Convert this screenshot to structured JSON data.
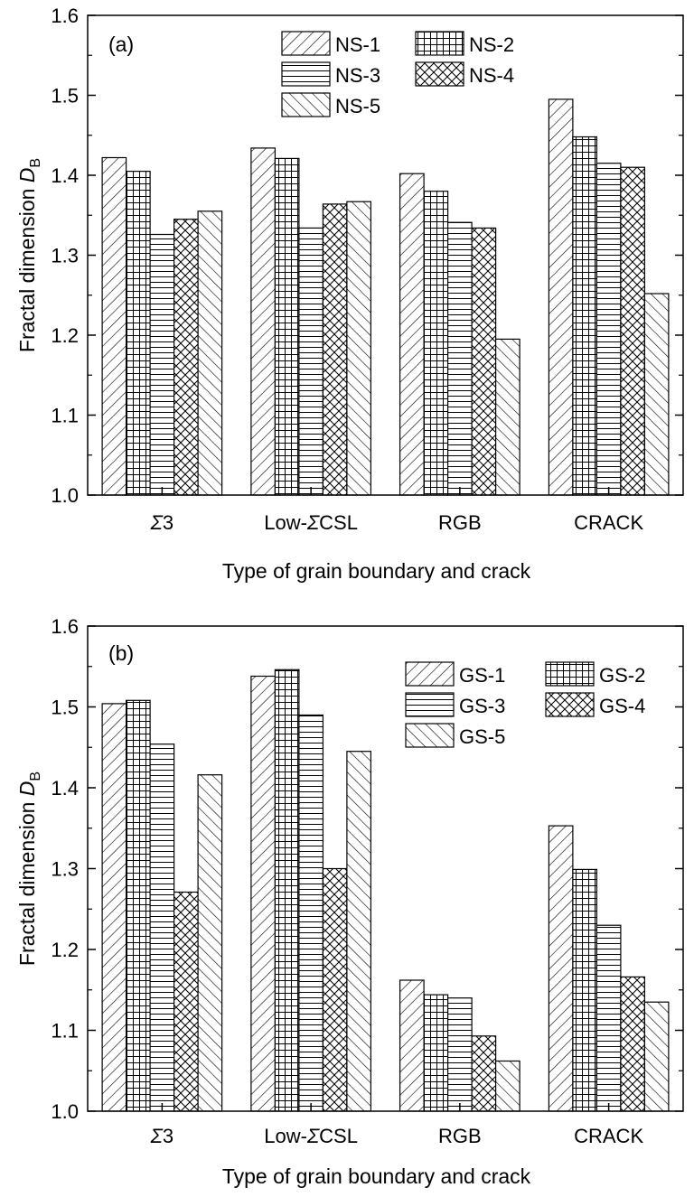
{
  "chart_data": [
    {
      "type": "bar",
      "panel_label": "(a)",
      "categories": [
        "Σ3",
        "Low-ΣCSL",
        "RGB",
        "CRACK"
      ],
      "category_labels": [
        {
          "prefix": "",
          "sigma": "Σ",
          "suffix": "3"
        },
        {
          "prefix": "Low-",
          "sigma": "Σ",
          "suffix": "CSL"
        },
        {
          "prefix": "RGB",
          "sigma": "",
          "suffix": ""
        },
        {
          "prefix": "CRACK",
          "sigma": "",
          "suffix": ""
        }
      ],
      "series": [
        {
          "name": "NS-1",
          "pattern": "diag-right",
          "values": [
            1.422,
            1.434,
            1.402,
            1.495
          ]
        },
        {
          "name": "NS-2",
          "pattern": "grid",
          "values": [
            1.405,
            1.421,
            1.38,
            1.448
          ]
        },
        {
          "name": "NS-3",
          "pattern": "horizontal",
          "values": [
            1.326,
            1.334,
            1.341,
            1.415
          ]
        },
        {
          "name": "NS-4",
          "pattern": "crosshatch",
          "values": [
            1.345,
            1.364,
            1.334,
            1.41
          ]
        },
        {
          "name": "NS-5",
          "pattern": "diag-left",
          "values": [
            1.355,
            1.367,
            1.195,
            1.252
          ]
        }
      ],
      "xlabel": "Type of grain boundary and crack",
      "ylabel_text": "Fractal dimension ",
      "ylabel_symbol": "D",
      "ylabel_subscript": "B",
      "ylim": [
        1.0,
        1.6
      ],
      "yticks": [
        "1.0",
        "1.1",
        "1.2",
        "1.3",
        "1.4",
        "1.5",
        "1.6"
      ],
      "legend_position": "top-right"
    },
    {
      "type": "bar",
      "panel_label": "(b)",
      "categories": [
        "Σ3",
        "Low-ΣCSL",
        "RGB",
        "CRACK"
      ],
      "category_labels": [
        {
          "prefix": "",
          "sigma": "Σ",
          "suffix": "3"
        },
        {
          "prefix": "Low-",
          "sigma": "Σ",
          "suffix": "CSL"
        },
        {
          "prefix": "RGB",
          "sigma": "",
          "suffix": ""
        },
        {
          "prefix": "CRACK",
          "sigma": "",
          "suffix": ""
        }
      ],
      "series": [
        {
          "name": "GS-1",
          "pattern": "diag-right",
          "values": [
            1.504,
            1.538,
            1.162,
            1.353
          ]
        },
        {
          "name": "GS-2",
          "pattern": "grid",
          "values": [
            1.508,
            1.546,
            1.144,
            1.299
          ]
        },
        {
          "name": "GS-3",
          "pattern": "horizontal",
          "values": [
            1.454,
            1.49,
            1.14,
            1.23
          ]
        },
        {
          "name": "GS-4",
          "pattern": "crosshatch",
          "values": [
            1.271,
            1.3,
            1.093,
            1.166
          ]
        },
        {
          "name": "GS-5",
          "pattern": "diag-left",
          "values": [
            1.416,
            1.445,
            1.062,
            1.135
          ]
        }
      ],
      "xlabel": "Type of grain boundary and crack",
      "ylabel_text": "Fractal dimension ",
      "ylabel_symbol": "D",
      "ylabel_subscript": "B",
      "ylim": [
        1.0,
        1.6
      ],
      "yticks": [
        "1.0",
        "1.1",
        "1.2",
        "1.3",
        "1.4",
        "1.5",
        "1.6"
      ],
      "legend_position": "top-right"
    }
  ]
}
